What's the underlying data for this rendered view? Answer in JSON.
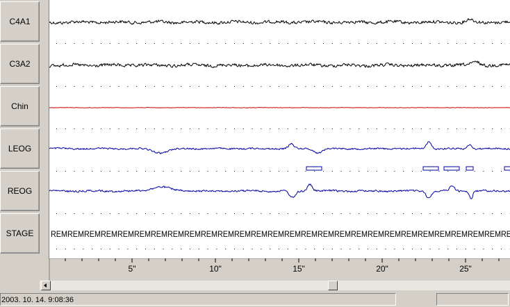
{
  "channels": [
    {
      "label": "C4A1",
      "color": "#000000"
    },
    {
      "label": "C3A2",
      "color": "#000000"
    },
    {
      "label": "Chin",
      "color": "#cc0000"
    },
    {
      "label": "LEOG",
      "color": "#0000a0"
    },
    {
      "label": "REOG",
      "color": "#0000a0"
    },
    {
      "label": "STAGE",
      "color": "#000000"
    }
  ],
  "stage_marker": "REM",
  "time_axis": {
    "tick_labels": [
      "5\"",
      "10\"",
      "15\"",
      "20\"",
      "25\""
    ]
  },
  "status": {
    "timestamp": "2003. 10. 14. 9:08:36"
  },
  "colors": {
    "background": "#ffffff",
    "chrome": "#d4d0c8",
    "event_box": "#0000a0"
  },
  "scrollbar": {
    "left_arrow_icon": "left-arrow-icon"
  }
}
